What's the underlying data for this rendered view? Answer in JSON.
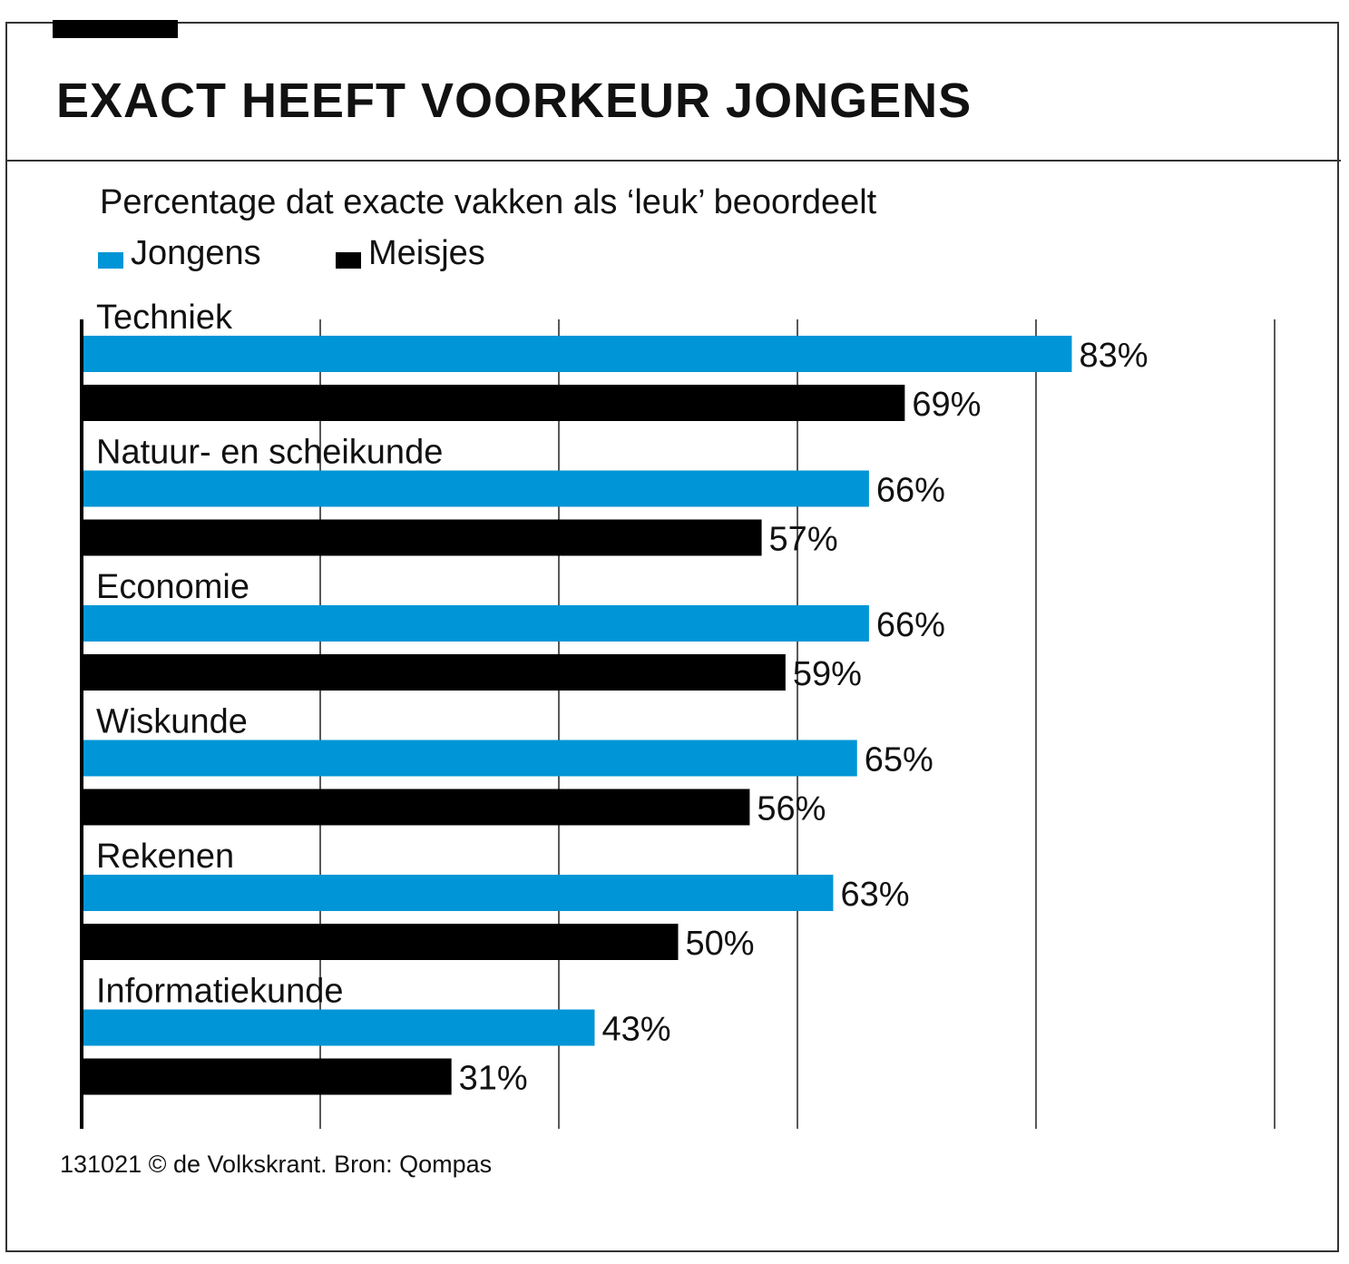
{
  "title": "EXACT HEEFT VOORKEUR JONGENS",
  "subtitle": "Percentage dat exacte vakken als ‘leuk’ beoordeelt",
  "legend": {
    "jongens": "Jongens",
    "meisjes": "Meisjes"
  },
  "footer": "131021 © de Volkskrant. Bron: Qompas",
  "colors": {
    "jongens": "#0095d6",
    "meisjes": "#000000",
    "grid": "#222222"
  },
  "chart_data": {
    "type": "bar",
    "orientation": "horizontal",
    "categories": [
      "Techniek",
      "Natuur- en scheikunde",
      "Economie",
      "Wiskunde",
      "Rekenen",
      "Informatiekunde"
    ],
    "series": [
      {
        "name": "Jongens",
        "values": [
          83,
          66,
          66,
          65,
          63,
          43
        ],
        "labels": [
          "83%",
          "66%",
          "66%",
          "65%",
          "63%",
          "43%"
        ]
      },
      {
        "name": "Meisjes",
        "values": [
          69,
          57,
          59,
          56,
          50,
          31
        ],
        "labels": [
          "69%",
          "57%",
          "59%",
          "56%",
          "50%",
          "31%"
        ]
      }
    ],
    "xlim": [
      0,
      100
    ],
    "grid": true,
    "legend_position": "top-left"
  }
}
